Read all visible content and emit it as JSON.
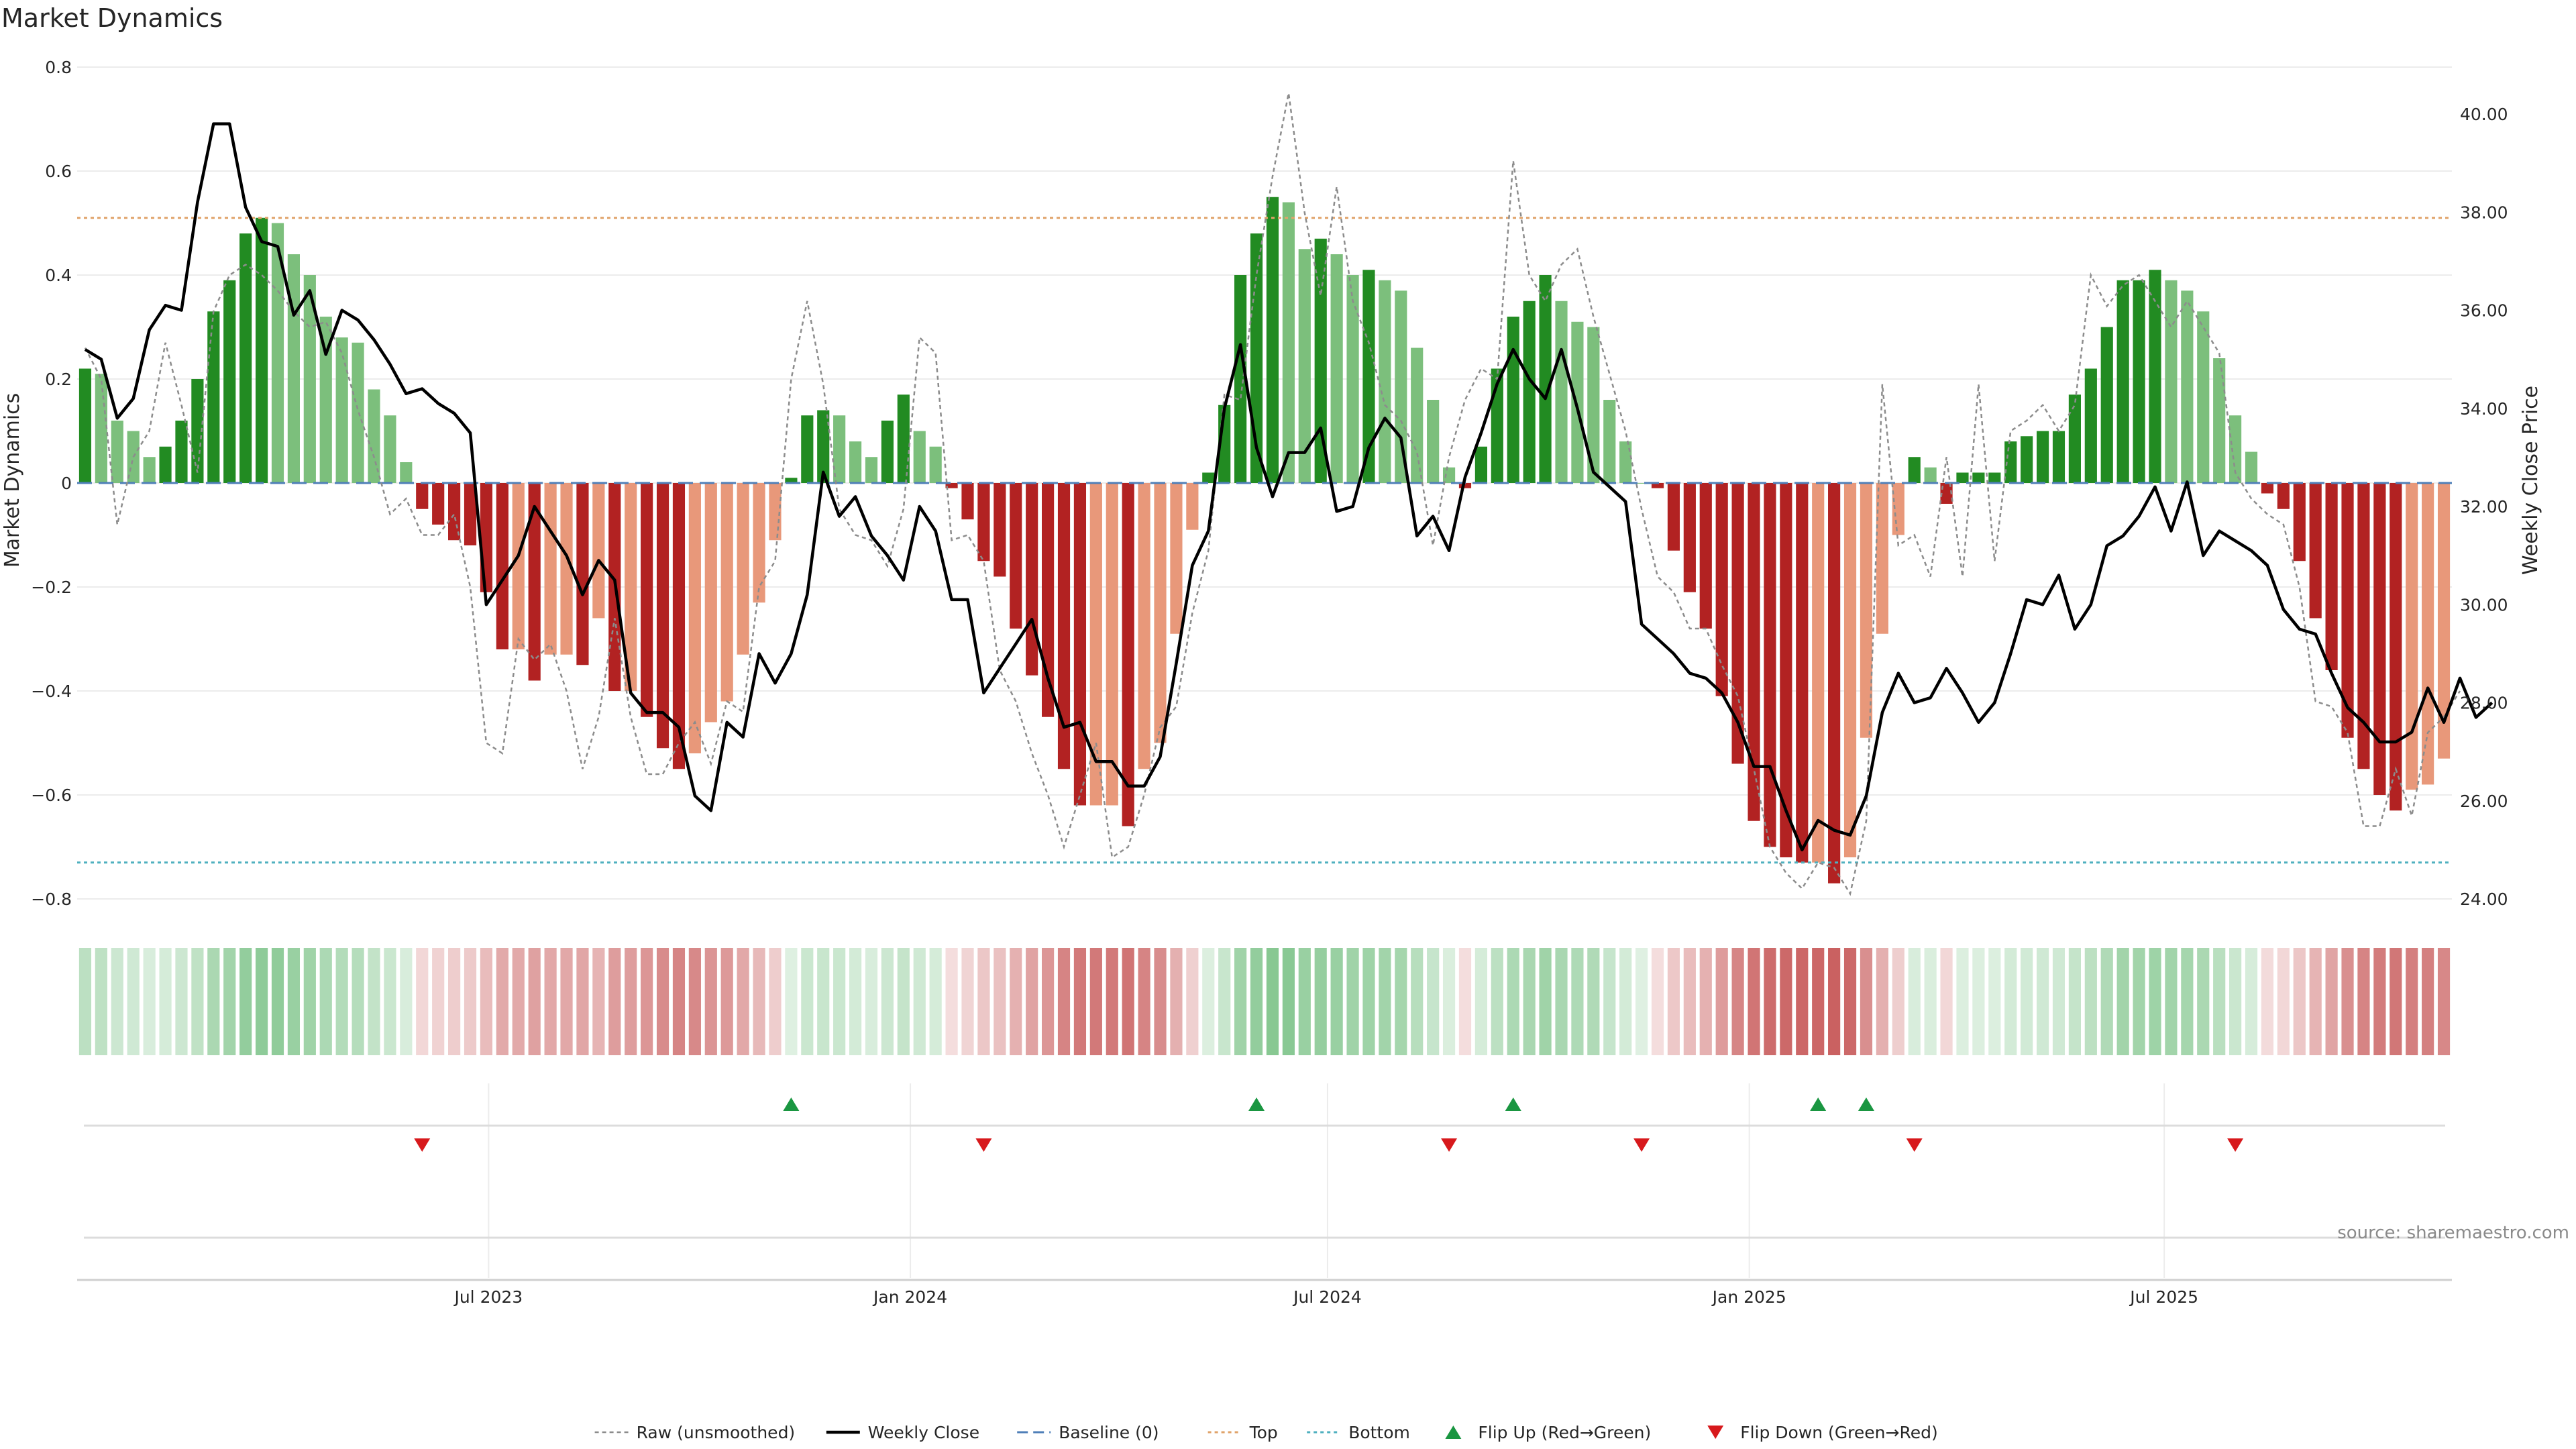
{
  "chart_data": {
    "type": "bar",
    "title": "Market Dynamics",
    "ylabel": "Market Dynamics",
    "y2label": "Weekly Close Price",
    "ylim": [
      -0.8,
      0.8
    ],
    "y2lim": [
      24.0,
      40.0
    ],
    "start_date": "2023-01-06",
    "end_date": "2025-10-31",
    "left_ticks": [
      "0.8",
      "0.6",
      "0.4",
      "0.2",
      "0",
      "−0.2",
      "−0.4",
      "−0.6",
      "−0.8"
    ],
    "left_tick_values": [
      0.8,
      0.6,
      0.4,
      0.2,
      0,
      -0.2,
      -0.4,
      -0.6,
      -0.8
    ],
    "right_ticks": [
      "40.00",
      "38.00",
      "36.00",
      "34.00",
      "32.00",
      "30.00",
      "28.00",
      "26.00",
      "24.00"
    ],
    "right_tick_values": [
      40,
      38,
      36,
      34,
      32,
      30,
      28,
      26,
      24
    ],
    "x_ticks": [
      {
        "date": "2023-07-01",
        "label": "Jul 2023"
      },
      {
        "date": "2024-01-01",
        "label": "Jan 2024"
      },
      {
        "date": "2024-07-01",
        "label": "Jul 2024"
      },
      {
        "date": "2025-01-01",
        "label": "Jan 2025"
      },
      {
        "date": "2025-07-01",
        "label": "Jul 2025"
      }
    ],
    "top_line": 0.51,
    "bottom_line": -0.73,
    "baseline": 0,
    "smoothed": [
      0.22,
      0.21,
      0.12,
      0.1,
      0.05,
      0.07,
      0.12,
      0.2,
      0.33,
      0.39,
      0.48,
      0.51,
      0.5,
      0.44,
      0.4,
      0.32,
      0.28,
      0.27,
      0.18,
      0.13,
      0.04,
      -0.05,
      -0.08,
      -0.11,
      -0.12,
      -0.21,
      -0.32,
      -0.32,
      -0.38,
      -0.33,
      -0.33,
      -0.35,
      -0.26,
      -0.4,
      -0.4,
      -0.45,
      -0.51,
      -0.55,
      -0.52,
      -0.46,
      -0.42,
      -0.33,
      -0.23,
      -0.11,
      0.01,
      0.13,
      0.14,
      0.13,
      0.08,
      0.05,
      0.12,
      0.17,
      0.1,
      0.07,
      -0.01,
      -0.07,
      -0.15,
      -0.18,
      -0.28,
      -0.37,
      -0.45,
      -0.55,
      -0.62,
      -0.62,
      -0.62,
      -0.66,
      -0.55,
      -0.5,
      -0.29,
      -0.09,
      0.02,
      0.15,
      0.4,
      0.48,
      0.55,
      0.54,
      0.45,
      0.47,
      0.44,
      0.4,
      0.41,
      0.39,
      0.37,
      0.26,
      0.16,
      0.03,
      -0.01,
      0.07,
      0.22,
      0.32,
      0.35,
      0.4,
      0.35,
      0.31,
      0.3,
      0.16,
      0.08,
      0.0,
      -0.01,
      -0.13,
      -0.21,
      -0.28,
      -0.41,
      -0.54,
      -0.65,
      -0.7,
      -0.72,
      -0.73,
      -0.73,
      -0.77,
      -0.72,
      -0.49,
      -0.29,
      -0.1,
      0.05,
      0.03,
      -0.04,
      0.02,
      0.02,
      0.02,
      0.08,
      0.09,
      0.1,
      0.1,
      0.17,
      0.22,
      0.3,
      0.39,
      0.39,
      0.41,
      0.39,
      0.37,
      0.33,
      0.24,
      0.13,
      0.06,
      -0.02,
      -0.05,
      -0.15,
      -0.26,
      -0.36,
      -0.49,
      -0.55,
      -0.6,
      -0.63,
      -0.59,
      -0.58,
      -0.53
    ],
    "raw": [
      0.26,
      0.2,
      -0.08,
      0.05,
      0.1,
      0.27,
      0.15,
      0.02,
      0.33,
      0.4,
      0.42,
      0.4,
      0.37,
      0.33,
      0.3,
      0.31,
      0.25,
      0.14,
      0.05,
      -0.06,
      -0.03,
      -0.1,
      -0.1,
      -0.06,
      -0.2,
      -0.5,
      -0.52,
      -0.3,
      -0.34,
      -0.31,
      -0.4,
      -0.55,
      -0.45,
      -0.26,
      -0.45,
      -0.56,
      -0.56,
      -0.5,
      -0.46,
      -0.54,
      -0.42,
      -0.44,
      -0.2,
      -0.15,
      0.2,
      0.35,
      0.19,
      -0.05,
      -0.1,
      -0.11,
      -0.16,
      -0.05,
      0.28,
      0.25,
      -0.11,
      -0.1,
      -0.15,
      -0.36,
      -0.42,
      -0.52,
      -0.6,
      -0.7,
      -0.6,
      -0.5,
      -0.72,
      -0.7,
      -0.6,
      -0.47,
      -0.43,
      -0.25,
      -0.13,
      0.17,
      0.16,
      0.4,
      0.59,
      0.75,
      0.52,
      0.36,
      0.57,
      0.35,
      0.27,
      0.15,
      0.12,
      0.06,
      -0.12,
      0.05,
      0.16,
      0.22,
      0.2,
      0.62,
      0.4,
      0.35,
      0.42,
      0.45,
      0.32,
      0.21,
      0.1,
      -0.05,
      -0.18,
      -0.21,
      -0.28,
      -0.28,
      -0.35,
      -0.41,
      -0.55,
      -0.7,
      -0.75,
      -0.78,
      -0.73,
      -0.74,
      -0.79,
      -0.65,
      0.19,
      -0.12,
      -0.1,
      -0.18,
      0.05,
      -0.18,
      0.19,
      -0.15,
      0.1,
      0.12,
      0.15,
      0.1,
      0.15,
      0.4,
      0.34,
      0.38,
      0.4,
      0.35,
      0.3,
      0.35,
      0.3,
      0.25,
      0.02,
      -0.03,
      -0.06,
      -0.08,
      -0.2,
      -0.42,
      -0.43,
      -0.48,
      -0.66,
      -0.66,
      -0.55,
      -0.64,
      -0.48,
      -0.45,
      -0.4
    ],
    "close": [
      35.2,
      35.0,
      33.8,
      34.2,
      35.6,
      36.1,
      36.0,
      38.2,
      39.8,
      39.8,
      38.1,
      37.4,
      37.3,
      35.9,
      36.4,
      35.1,
      36.0,
      35.8,
      35.4,
      34.9,
      34.3,
      34.4,
      34.1,
      33.9,
      33.5,
      30.0,
      30.5,
      31.0,
      32.0,
      31.5,
      31.0,
      30.2,
      30.9,
      30.5,
      28.2,
      27.8,
      27.8,
      27.5,
      26.1,
      25.8,
      27.6,
      27.3,
      29.0,
      28.4,
      29.0,
      30.2,
      32.7,
      31.8,
      32.2,
      31.4,
      31.0,
      30.5,
      32.0,
      31.5,
      30.1,
      30.1,
      28.2,
      28.7,
      29.2,
      29.7,
      28.5,
      27.5,
      27.6,
      26.8,
      26.8,
      26.3,
      26.3,
      26.9,
      28.8,
      30.8,
      31.5,
      34.0,
      35.3,
      33.2,
      32.2,
      33.1,
      33.1,
      33.6,
      31.9,
      32.0,
      33.2,
      33.8,
      33.4,
      31.4,
      31.8,
      31.1,
      32.6,
      33.5,
      34.5,
      35.2,
      34.6,
      34.2,
      35.2,
      34.0,
      32.7,
      32.4,
      32.1,
      29.6,
      29.3,
      29.0,
      28.6,
      28.5,
      28.2,
      27.6,
      26.7,
      26.7,
      25.8,
      25.0,
      25.6,
      25.4,
      25.3,
      26.1,
      27.8,
      28.6,
      28.0,
      28.1,
      28.7,
      28.2,
      27.6,
      28.0,
      29.0,
      30.1,
      30.0,
      30.6,
      29.5,
      30.0,
      31.2,
      31.4,
      31.8,
      32.4,
      31.5,
      32.5,
      31.0,
      31.5,
      31.3,
      31.1,
      30.8,
      29.9,
      29.5,
      29.4,
      28.6,
      27.9,
      27.6,
      27.2,
      27.2,
      27.4,
      28.3,
      27.6,
      28.5,
      27.7,
      28.0
    ],
    "flip_up_idx": [
      44,
      73,
      89,
      108,
      111
    ],
    "flip_down_idx": [
      21,
      56,
      85,
      97,
      114,
      134
    ],
    "colors": {
      "green_strong": "#228B22",
      "green_light": "#7CBF7C",
      "red_strong": "#B22222",
      "red_light": "#E8987A",
      "close_line": "#000000",
      "raw_line": "#8c8c8c",
      "baseline": "#4f7fb8",
      "top": "#e0a36a",
      "bottom": "#4fb0bf",
      "flip_up": "#1a9641",
      "flip_down": "#d7191c"
    },
    "legend": [
      {
        "key": "raw",
        "label": "Raw (unsmoothed)"
      },
      {
        "key": "close",
        "label": "Weekly Close"
      },
      {
        "key": "baseline",
        "label": "Baseline (0)"
      },
      {
        "key": "top",
        "label": "Top"
      },
      {
        "key": "bottom",
        "label": "Bottom"
      },
      {
        "key": "flip_up",
        "label": "Flip Up (Red→Green)"
      },
      {
        "key": "flip_down",
        "label": "Flip Down (Green→Red)"
      }
    ],
    "legend_position": "bottom-center",
    "source": "source: sharemaestro.com"
  }
}
